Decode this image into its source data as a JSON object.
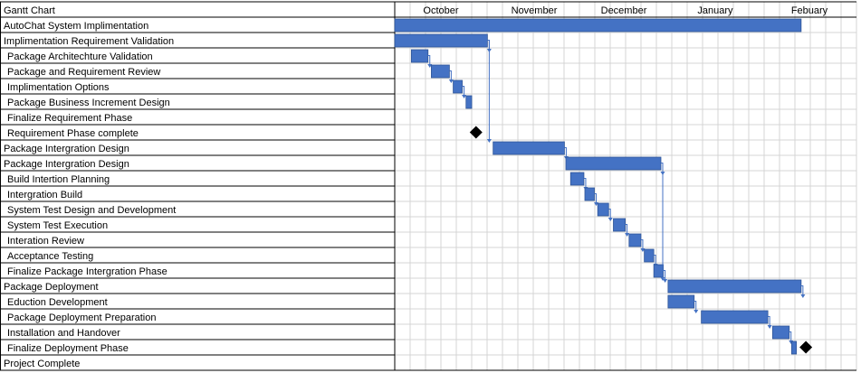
{
  "chart_data": {
    "type": "gantt",
    "title": "Gantt Chart",
    "months": [
      "October",
      "November",
      "December",
      "January",
      "Febuary"
    ],
    "tasks": [
      {
        "name": "AutoChat System Implimentation",
        "start": 0.0,
        "end": 8.55,
        "indent": 0,
        "kind": "bar"
      },
      {
        "name": "Implimentation Requirement Validation",
        "start": 0.0,
        "end": 1.95,
        "indent": 0,
        "kind": "bar"
      },
      {
        "name": "Package Architechture Validation",
        "start": 0.35,
        "end": 0.7,
        "indent": 1,
        "kind": "bar"
      },
      {
        "name": "Package and Requirement Review",
        "start": 0.77,
        "end": 1.15,
        "indent": 1,
        "kind": "bar"
      },
      {
        "name": "Implimentation Options",
        "start": 1.23,
        "end": 1.42,
        "indent": 1,
        "kind": "bar"
      },
      {
        "name": "Package Business Increment Design",
        "start": 1.5,
        "end": 1.62,
        "indent": 1,
        "kind": "bar"
      },
      {
        "name": "Finalize Requirement Phase",
        "start": 1.62,
        "end": 1.65,
        "indent": 1,
        "kind": "none"
      },
      {
        "name": "Requirement Phase complete",
        "start": 1.71,
        "end": 1.71,
        "indent": 1,
        "kind": "milestone"
      },
      {
        "name": "Package Intergration Design",
        "start": 2.07,
        "end": 3.57,
        "indent": 0,
        "kind": "bar"
      },
      {
        "name": "Package Intergration Design",
        "start": 3.6,
        "end": 5.6,
        "indent": 0,
        "kind": "bar"
      },
      {
        "name": "Build Intertion Planning",
        "start": 3.7,
        "end": 3.98,
        "indent": 1,
        "kind": "bar"
      },
      {
        "name": "Intergration Build",
        "start": 4.0,
        "end": 4.2,
        "indent": 1,
        "kind": "bar"
      },
      {
        "name": "System Test Design and Development",
        "start": 4.27,
        "end": 4.5,
        "indent": 1,
        "kind": "bar"
      },
      {
        "name": "System Test Execution",
        "start": 4.6,
        "end": 4.85,
        "indent": 1,
        "kind": "bar"
      },
      {
        "name": "Interation Review",
        "start": 4.93,
        "end": 5.18,
        "indent": 1,
        "kind": "bar"
      },
      {
        "name": "Acceptance Testing",
        "start": 5.25,
        "end": 5.45,
        "indent": 1,
        "kind": "bar"
      },
      {
        "name": "Finalize Package Intergration Phase",
        "start": 5.45,
        "end": 5.65,
        "indent": 1,
        "kind": "bar"
      },
      {
        "name": "Package Deployment",
        "start": 5.75,
        "end": 8.55,
        "indent": 0,
        "kind": "bar"
      },
      {
        "name": "Eduction Development",
        "start": 5.75,
        "end": 6.3,
        "indent": 1,
        "kind": "bar"
      },
      {
        "name": "Package Deployment Preparation",
        "start": 6.45,
        "end": 7.85,
        "indent": 1,
        "kind": "bar"
      },
      {
        "name": "Installation and Handover",
        "start": 7.95,
        "end": 8.3,
        "indent": 1,
        "kind": "bar"
      },
      {
        "name": "Finalize Deployment Phase",
        "start": 8.35,
        "end": 8.45,
        "indent": 1,
        "kind": "bar",
        "milestone_at": 8.65
      },
      {
        "name": "Project Complete",
        "start": 0,
        "end": 0,
        "indent": 0,
        "kind": "none"
      }
    ],
    "bar_color": "#4472C4",
    "milestone_color": "#000000",
    "grid": true
  }
}
